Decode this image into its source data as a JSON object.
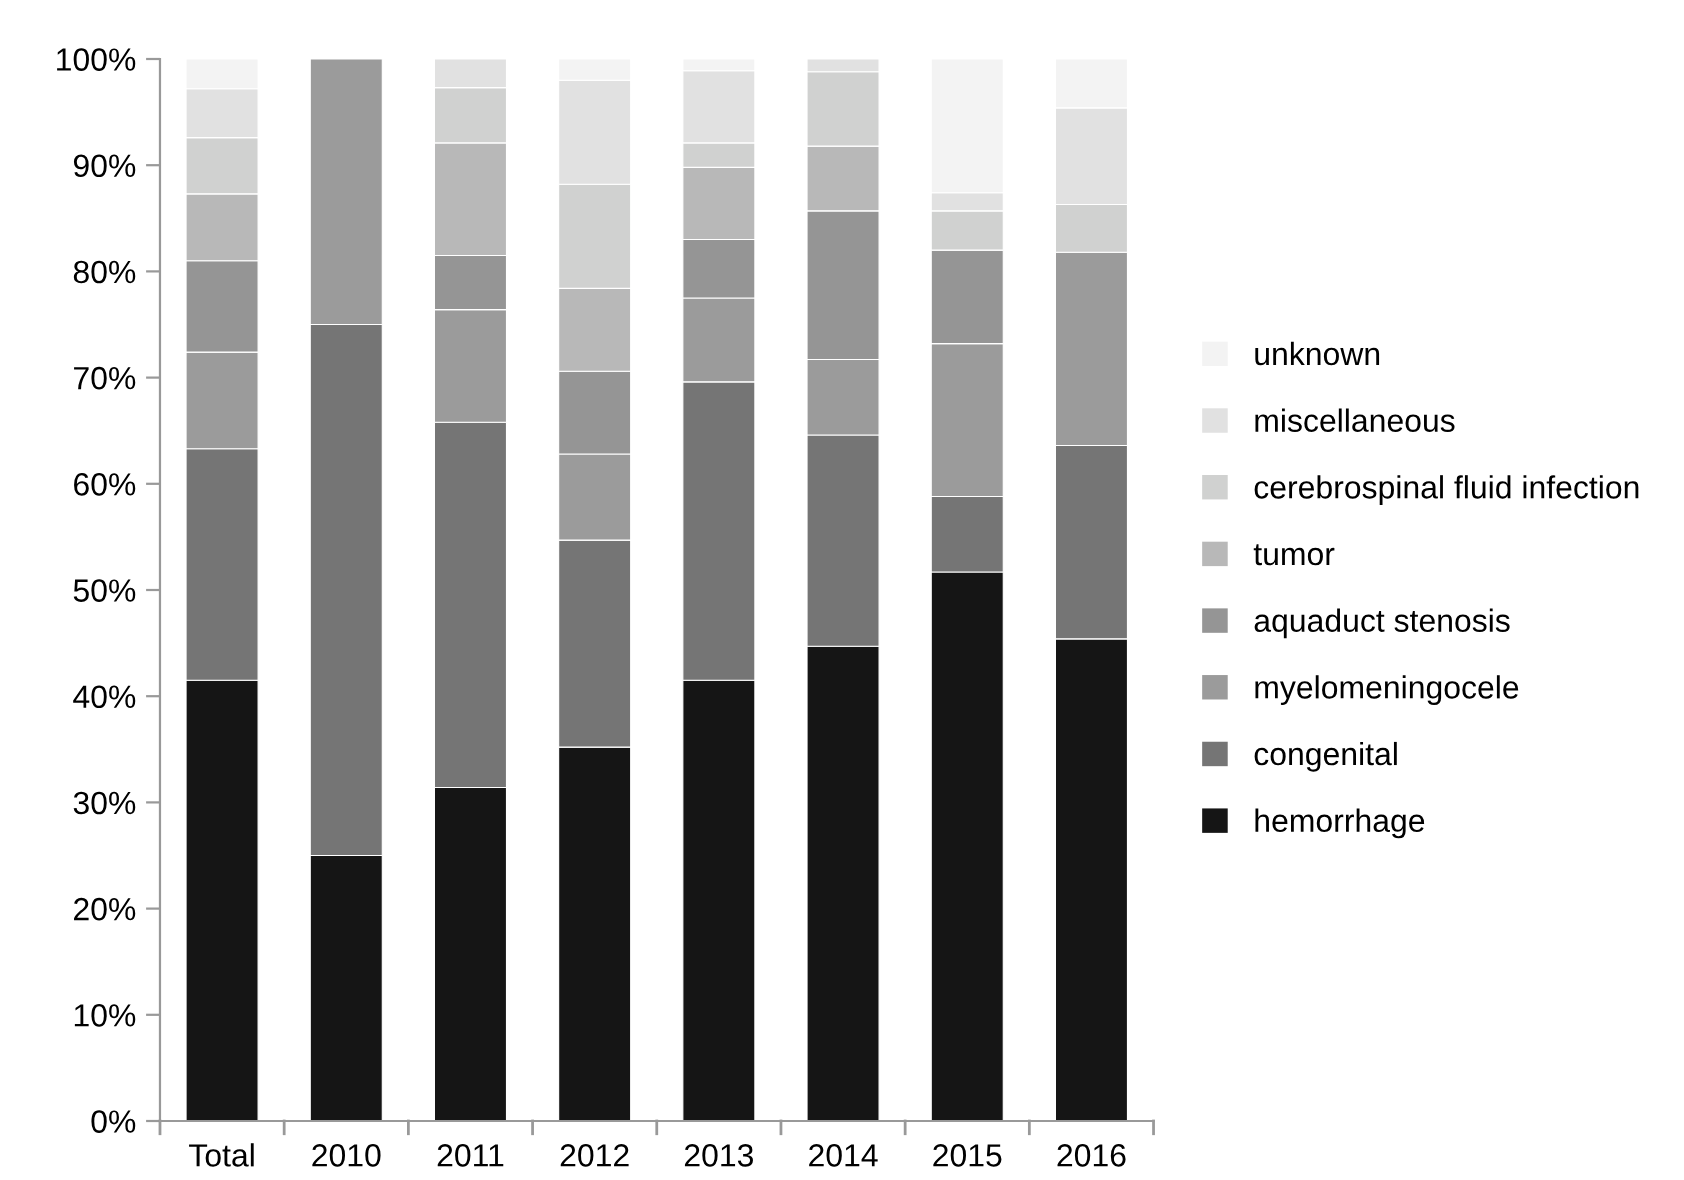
{
  "chart_data": {
    "type": "bar",
    "stacked": true,
    "categories": [
      "Total",
      "2010",
      "2011",
      "2012",
      "2013",
      "2014",
      "2015",
      "2016"
    ],
    "series": [
      {
        "name": "hemorrhage",
        "color": "#151515",
        "values": [
          41.5,
          25,
          31.4,
          35.2,
          41.5,
          44.7,
          51.7,
          45.4
        ]
      },
      {
        "name": "congenital",
        "color": "#757575",
        "values": [
          21.8,
          50,
          34.4,
          19.5,
          28.1,
          19.9,
          7.1,
          18.2
        ]
      },
      {
        "name": "myelomeningocele",
        "color": "#9b9b9b",
        "values": [
          9.1,
          25,
          10.6,
          8.1,
          7.9,
          7.1,
          14.4,
          18.2
        ]
      },
      {
        "name": "aquaduct stenosis",
        "color": "#959595",
        "values": [
          8.6,
          0,
          5.1,
          7.8,
          5.5,
          14.0,
          8.8,
          0
        ]
      },
      {
        "name": "tumor",
        "color": "#b8b8b8",
        "values": [
          6.3,
          0,
          10.6,
          7.8,
          6.8,
          6.1,
          0,
          0
        ]
      },
      {
        "name": "cerebrospinal fluid infection",
        "color": "#d0d1d0",
        "values": [
          5.3,
          0,
          5.2,
          9.8,
          2.3,
          7.0,
          3.7,
          4.5
        ]
      },
      {
        "name": "miscellaneous",
        "color": "#e1e1e1",
        "values": [
          4.6,
          0,
          2.7,
          9.8,
          6.8,
          1.2,
          1.7,
          9.1
        ]
      },
      {
        "name": "unknown",
        "color": "#f3f3f3",
        "values": [
          2.8,
          0,
          0,
          2.0,
          1.1,
          0,
          12.6,
          4.6
        ]
      }
    ],
    "ylim": [
      0,
      100
    ],
    "yticks": [
      {
        "value": 0,
        "label": "0%"
      },
      {
        "value": 10,
        "label": "10%"
      },
      {
        "value": 20,
        "label": "20%"
      },
      {
        "value": 30,
        "label": "30%"
      },
      {
        "value": 40,
        "label": "40%"
      },
      {
        "value": 50,
        "label": "50%"
      },
      {
        "value": 60,
        "label": "60%"
      },
      {
        "value": 70,
        "label": "70%"
      },
      {
        "value": 80,
        "label": "80%"
      },
      {
        "value": 90,
        "label": "90%"
      },
      {
        "value": 100,
        "label": "100%"
      }
    ],
    "legend": "right"
  }
}
